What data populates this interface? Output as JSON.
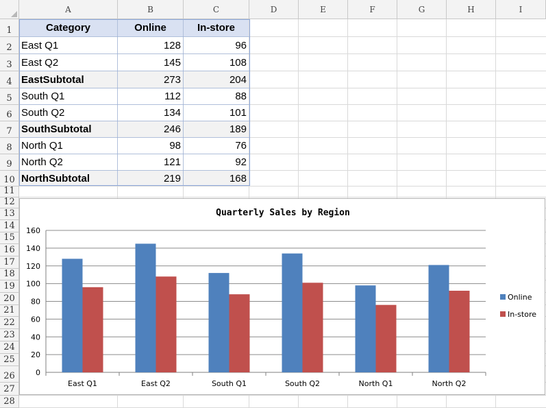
{
  "columns": [
    "A",
    "B",
    "C",
    "D",
    "E",
    "F",
    "G",
    "H",
    "I"
  ],
  "rows": [
    "1",
    "2",
    "3",
    "4",
    "5",
    "6",
    "7",
    "8",
    "9",
    "10",
    "11",
    "12",
    "13",
    "14",
    "15",
    "16",
    "17",
    "18",
    "19",
    "20",
    "21",
    "22",
    "23",
    "24",
    "25",
    "26",
    "27",
    "28"
  ],
  "table": {
    "headers": [
      "Category",
      "Online",
      "In-store"
    ],
    "rows": [
      {
        "category": "East Q1",
        "online": "128",
        "instore": "96",
        "subtotal": false
      },
      {
        "category": "East Q2",
        "online": "145",
        "instore": "108",
        "subtotal": false
      },
      {
        "category": "EastSubtotal",
        "online": "273",
        "instore": "204",
        "subtotal": true
      },
      {
        "category": "South Q1",
        "online": "112",
        "instore": "88",
        "subtotal": false
      },
      {
        "category": "South Q2",
        "online": "134",
        "instore": "101",
        "subtotal": false
      },
      {
        "category": "SouthSubtotal",
        "online": "246",
        "instore": "189",
        "subtotal": true
      },
      {
        "category": "North Q1",
        "online": "98",
        "instore": "76",
        "subtotal": false
      },
      {
        "category": "North Q2",
        "online": "121",
        "instore": "92",
        "subtotal": false
      },
      {
        "category": "NorthSubtotal",
        "online": "219",
        "instore": "168",
        "subtotal": true
      }
    ]
  },
  "colors": {
    "header_fill": "#d9e1f2",
    "subtotal_fill": "#f2f2f2",
    "online": "#4f81bd",
    "instore": "#c0504d"
  },
  "chart_data": {
    "type": "bar",
    "title": "Quarterly Sales by Region",
    "categories": [
      "East Q1",
      "East Q2",
      "South Q1",
      "South Q2",
      "North Q1",
      "North Q2"
    ],
    "series": [
      {
        "name": "Online",
        "values": [
          128,
          145,
          112,
          134,
          98,
          121
        ]
      },
      {
        "name": "In-store",
        "values": [
          96,
          108,
          88,
          101,
          76,
          92
        ]
      }
    ],
    "ylim": [
      0,
      160
    ],
    "yticks": [
      0,
      20,
      40,
      60,
      80,
      100,
      120,
      140,
      160
    ],
    "grid": true,
    "legend": "right"
  }
}
